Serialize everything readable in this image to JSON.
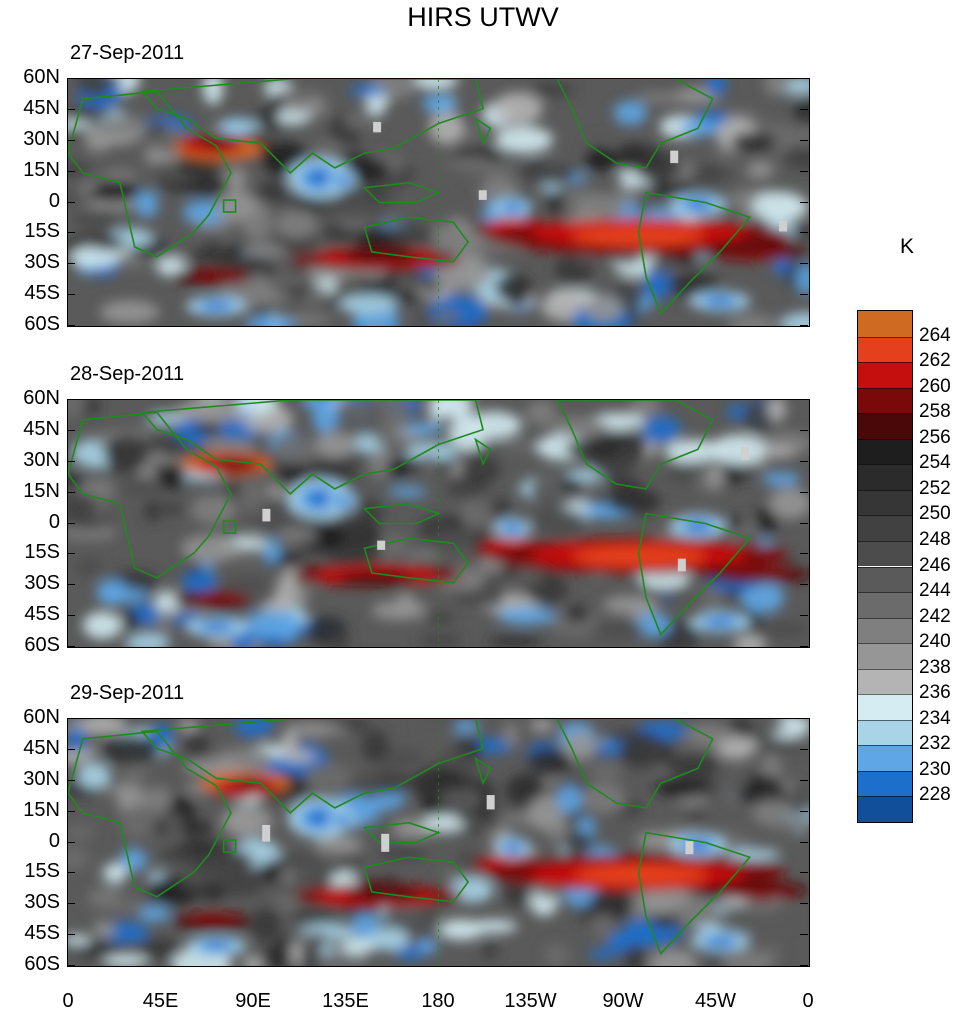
{
  "title": "HIRS UTWV",
  "panels": [
    {
      "date": "27-Sep-2011",
      "seed": 11
    },
    {
      "date": "28-Sep-2011",
      "seed": 29
    },
    {
      "date": "29-Sep-2011",
      "seed": 47
    }
  ],
  "lat_labels": [
    "60N",
    "45N",
    "30N",
    "15N",
    "0",
    "15S",
    "30S",
    "45S",
    "60S"
  ],
  "lon_labels": [
    "0",
    "45E",
    "90E",
    "135E",
    "180",
    "135W",
    "90W",
    "45W",
    "0"
  ],
  "colorbar": {
    "unit": "K",
    "labels": [
      "264",
      "262",
      "260",
      "258",
      "256",
      "254",
      "252",
      "250",
      "248",
      "246",
      "244",
      "242",
      "240",
      "238",
      "236",
      "234",
      "232",
      "230",
      "228"
    ],
    "colors": [
      "#cf6a23",
      "#e4401e",
      "#c50f0f",
      "#7a0a0a",
      "#4a0808",
      "#1e1e1e",
      "#2b2b2b",
      "#363636",
      "#414141",
      "#4c4c4c",
      "#5a5a5a",
      "#6b6b6b",
      "#7f7f7f",
      "#969696",
      "#b4b4b4",
      "#d4ecf2",
      "#a9d4e8",
      "#5ea6e6",
      "#1d6fcc",
      "#124f9a",
      "#1c2a7a"
    ]
  },
  "coastline_color": "#1f8a1f",
  "axis_ranges": {
    "lat": [
      "60S",
      "60N"
    ],
    "lon": [
      "0",
      "360"
    ]
  }
}
